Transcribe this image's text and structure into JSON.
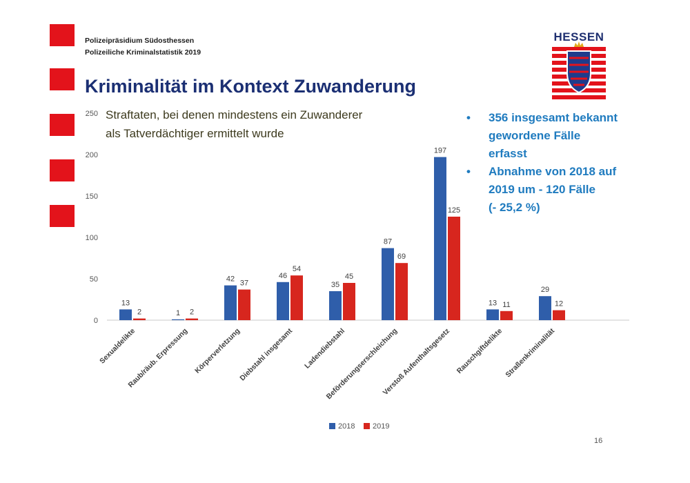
{
  "header": {
    "org_line1": "Polizeipräsidium Südosthessen",
    "org_line2": "Polizeiliche Kriminalstatistik 2019",
    "title": "Kriminalität im Kontext Zuwanderung",
    "subtitle_line1": "Straftaten, bei denen mindestens ein Zuwanderer",
    "subtitle_line2": "als Tatverdächtiger ermittelt wurde"
  },
  "logo": {
    "text": "HESSEN"
  },
  "bullets": [
    {
      "symbol": "•",
      "lines": [
        "356 insgesamt bekannt",
        "gewordene Fälle",
        "erfasst"
      ]
    },
    {
      "symbol": "•",
      "lines": [
        "Abnahme von 2018 auf",
        "2019 um - 120 Fälle",
        "(- 25,2 %)"
      ]
    }
  ],
  "colors": {
    "accent_red": "#e3131b",
    "series_2018": "#2f5eaa",
    "series_2019": "#d7261e",
    "title_blue": "#1b2f73",
    "bullet_blue": "#1f7bbf"
  },
  "chart_data": {
    "type": "bar",
    "categories": [
      "Sexualdelikte",
      "Raub/räub. Erpressung",
      "Körperverletzung",
      "Diebstahl insgesamt",
      "Ladendiebstahl",
      "Beförderungserschleichung",
      "Verstoß Aufenthaltsgesetz",
      "Rauschgiftdelikte",
      "Straßenkriminalität"
    ],
    "series": [
      {
        "name": "2018",
        "values": [
          13,
          1,
          42,
          46,
          35,
          87,
          197,
          13,
          29
        ]
      },
      {
        "name": "2019",
        "values": [
          2,
          2,
          37,
          54,
          45,
          69,
          125,
          11,
          12
        ]
      }
    ],
    "ylim": [
      0,
      250
    ],
    "yticks": [
      "0",
      "50",
      "100",
      "150",
      "200",
      "250"
    ],
    "grid": false,
    "legend_position": "bottom"
  },
  "footer": {
    "page_number": "16"
  }
}
